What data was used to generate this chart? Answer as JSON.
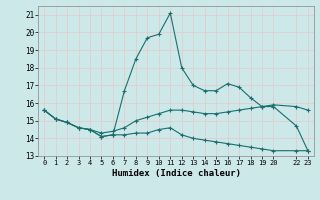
{
  "xlabel": "Humidex (Indice chaleur)",
  "bg_color": "#cce8e8",
  "grid_color": "#e8c8c8",
  "line_color": "#1a6e6e",
  "line1_x": [
    0,
    1,
    2,
    3,
    4,
    5,
    6,
    7,
    8,
    9,
    10,
    11,
    12,
    13,
    14,
    15,
    16,
    17,
    18,
    19,
    20,
    22,
    23
  ],
  "line1_y": [
    15.6,
    15.1,
    14.9,
    14.6,
    14.5,
    14.1,
    14.2,
    16.7,
    18.5,
    19.7,
    19.9,
    21.1,
    18.0,
    17.0,
    16.7,
    16.7,
    17.1,
    16.9,
    16.3,
    15.8,
    15.8,
    14.7,
    13.3
  ],
  "line2_x": [
    0,
    1,
    2,
    3,
    4,
    5,
    6,
    7,
    8,
    9,
    10,
    11,
    12,
    13,
    14,
    15,
    16,
    17,
    18,
    19,
    20,
    22,
    23
  ],
  "line2_y": [
    15.6,
    15.1,
    14.9,
    14.6,
    14.5,
    14.1,
    14.2,
    14.2,
    14.3,
    14.3,
    14.5,
    14.6,
    14.2,
    14.0,
    13.9,
    13.8,
    13.7,
    13.6,
    13.5,
    13.4,
    13.3,
    13.3,
    13.3
  ],
  "line3_x": [
    0,
    1,
    2,
    3,
    4,
    5,
    6,
    7,
    8,
    9,
    10,
    11,
    12,
    13,
    14,
    15,
    16,
    17,
    18,
    19,
    20,
    22,
    23
  ],
  "line3_y": [
    15.6,
    15.1,
    14.9,
    14.6,
    14.5,
    14.3,
    14.4,
    14.6,
    15.0,
    15.2,
    15.4,
    15.6,
    15.6,
    15.5,
    15.4,
    15.4,
    15.5,
    15.6,
    15.7,
    15.8,
    15.9,
    15.8,
    15.6
  ],
  "xlim": [
    -0.5,
    23.5
  ],
  "ylim": [
    13,
    21.5
  ],
  "xticks": [
    0,
    1,
    2,
    3,
    4,
    5,
    6,
    7,
    8,
    9,
    10,
    11,
    12,
    13,
    14,
    15,
    16,
    17,
    18,
    19,
    20,
    22,
    23
  ],
  "yticks": [
    13,
    14,
    15,
    16,
    17,
    18,
    19,
    20,
    21
  ]
}
